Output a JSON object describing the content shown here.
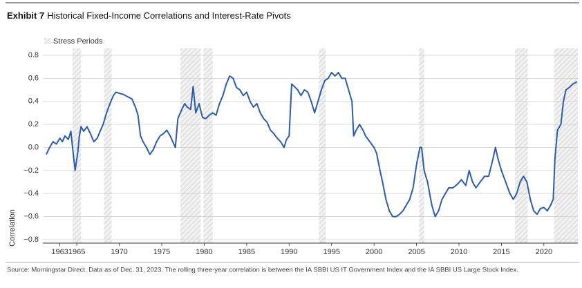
{
  "chart_data": {
    "type": "line",
    "title_bold": "Exhibit 7",
    "title": "Historical Fixed-Income Correlations and Interest-Rate Pivots",
    "y_label": "Correlation",
    "source": "Source: Morningstar Direct. Data as of Dec. 31, 2023. The rolling three-year correlation is between the IA SBBI US IT Government Index and the IA SBBI US Large Stock Index.",
    "stress_label": "Stress Periods",
    "stress_color": "#d9d9d9",
    "stress_periods": [
      [
        1964.5,
        1965.5
      ],
      [
        1968.2,
        1969.1
      ],
      [
        1977.2,
        1979.6
      ],
      [
        1979.9,
        1981.0
      ],
      [
        1993.5,
        1994.3
      ],
      [
        2005.3,
        2005.9
      ],
      [
        2016.6,
        2018.1
      ],
      [
        2021.2,
        2024.0
      ]
    ],
    "xlim": [
      1961,
      2024
    ],
    "xticks": [
      1963,
      1965,
      1970,
      1975,
      1980,
      1985,
      1990,
      1995,
      2000,
      2005,
      2010,
      2015,
      2020
    ],
    "ylim": [
      -0.83,
      0.86
    ],
    "yticks": [
      0.8,
      0.6,
      0.4,
      0.2,
      {
        "value": 0,
        "label": "0.0"
      },
      {
        "value": -0.2,
        "label": "−0.2"
      },
      {
        "value": -0.4,
        "label": "−0.4"
      },
      {
        "value": -0.6,
        "label": "−0.6"
      },
      {
        "value": -0.8,
        "label": "−0.8"
      }
    ],
    "grid": true,
    "series": [
      {
        "name": "Correlation",
        "color": "#2a5caa",
        "x": [
          1961.4,
          1961.8,
          1962.2,
          1962.6,
          1963.0,
          1963.3,
          1963.6,
          1964.0,
          1964.3,
          1964.5,
          1964.8,
          1965.1,
          1965.3,
          1965.5,
          1965.8,
          1966.2,
          1966.6,
          1967.0,
          1967.4,
          1967.8,
          1968.1,
          1968.5,
          1968.9,
          1969.3,
          1969.6,
          1970.0,
          1970.5,
          1971.0,
          1971.5,
          1971.9,
          1972.2,
          1972.5,
          1972.8,
          1973.2,
          1973.6,
          1974.0,
          1974.4,
          1974.8,
          1975.2,
          1975.6,
          1976.0,
          1976.3,
          1976.6,
          1976.9,
          1977.3,
          1977.7,
          1978.0,
          1978.4,
          1978.7,
          1979.0,
          1979.4,
          1979.8,
          1980.2,
          1980.6,
          1981.0,
          1981.4,
          1981.8,
          1982.2,
          1982.6,
          1983.0,
          1983.4,
          1983.8,
          1984.2,
          1984.6,
          1985.0,
          1985.4,
          1985.8,
          1986.2,
          1986.6,
          1987.0,
          1987.4,
          1987.8,
          1988.2,
          1988.6,
          1989.0,
          1989.4,
          1989.7,
          1990.0,
          1990.3,
          1990.6,
          1991.0,
          1991.4,
          1991.8,
          1992.2,
          1992.6,
          1993.0,
          1993.4,
          1993.8,
          1994.2,
          1994.6,
          1995.0,
          1995.4,
          1995.8,
          1996.2,
          1996.6,
          1997.0,
          1997.4,
          1997.6,
          1997.9,
          1998.3,
          1998.7,
          1999.0,
          1999.5,
          2000.0,
          2000.3,
          2000.7,
          2001.0,
          2001.4,
          2001.8,
          2002.2,
          2002.6,
          2003.0,
          2003.4,
          2003.8,
          2004.2,
          2004.6,
          2005.0,
          2005.4,
          2005.6,
          2005.9,
          2006.3,
          2006.8,
          2007.2,
          2007.6,
          2008.0,
          2008.4,
          2008.8,
          2009.3,
          2009.8,
          2010.3,
          2010.8,
          2011.2,
          2011.6,
          2012.0,
          2012.5,
          2013.0,
          2013.5,
          2014.0,
          2014.3,
          2014.6,
          2015.0,
          2015.5,
          2016.0,
          2016.4,
          2016.8,
          2017.2,
          2017.6,
          2018.0,
          2018.4,
          2018.8,
          2019.2,
          2019.6,
          2020.0,
          2020.4,
          2020.8,
          2021.1,
          2021.3,
          2021.6,
          2022.0,
          2022.3,
          2022.6,
          2023.0,
          2023.4,
          2023.9
        ],
        "values": [
          -0.06,
          0.0,
          0.05,
          0.03,
          0.08,
          0.05,
          0.1,
          0.07,
          0.14,
          0.0,
          -0.2,
          -0.05,
          0.1,
          0.18,
          0.14,
          0.18,
          0.12,
          0.05,
          0.08,
          0.15,
          0.2,
          0.3,
          0.38,
          0.45,
          0.48,
          0.47,
          0.46,
          0.44,
          0.42,
          0.35,
          0.28,
          0.1,
          0.05,
          0.0,
          -0.06,
          -0.02,
          0.05,
          0.1,
          0.12,
          0.15,
          0.1,
          0.05,
          0.0,
          0.25,
          0.32,
          0.38,
          0.35,
          0.33,
          0.53,
          0.3,
          0.38,
          0.26,
          0.25,
          0.28,
          0.3,
          0.28,
          0.38,
          0.45,
          0.55,
          0.62,
          0.6,
          0.52,
          0.5,
          0.45,
          0.48,
          0.4,
          0.35,
          0.38,
          0.3,
          0.25,
          0.22,
          0.15,
          0.12,
          0.08,
          0.05,
          0.0,
          0.07,
          0.1,
          0.55,
          0.53,
          0.5,
          0.45,
          0.5,
          0.48,
          0.4,
          0.3,
          0.4,
          0.5,
          0.58,
          0.6,
          0.65,
          0.62,
          0.65,
          0.6,
          0.6,
          0.5,
          0.4,
          0.1,
          0.15,
          0.2,
          0.15,
          0.1,
          0.05,
          0.0,
          -0.05,
          -0.2,
          -0.3,
          -0.45,
          -0.55,
          -0.6,
          -0.6,
          -0.58,
          -0.55,
          -0.5,
          -0.45,
          -0.35,
          -0.15,
          0.0,
          0.0,
          -0.2,
          -0.3,
          -0.5,
          -0.6,
          -0.55,
          -0.45,
          -0.4,
          -0.35,
          -0.35,
          -0.32,
          -0.28,
          -0.33,
          -0.2,
          -0.3,
          -0.35,
          -0.3,
          -0.25,
          -0.25,
          -0.1,
          0.0,
          -0.1,
          -0.2,
          -0.3,
          -0.4,
          -0.45,
          -0.4,
          -0.3,
          -0.25,
          -0.3,
          -0.45,
          -0.55,
          -0.58,
          -0.53,
          -0.52,
          -0.55,
          -0.5,
          -0.45,
          -0.1,
          0.15,
          0.2,
          0.4,
          0.5,
          0.52,
          0.55,
          0.57
        ]
      }
    ]
  }
}
